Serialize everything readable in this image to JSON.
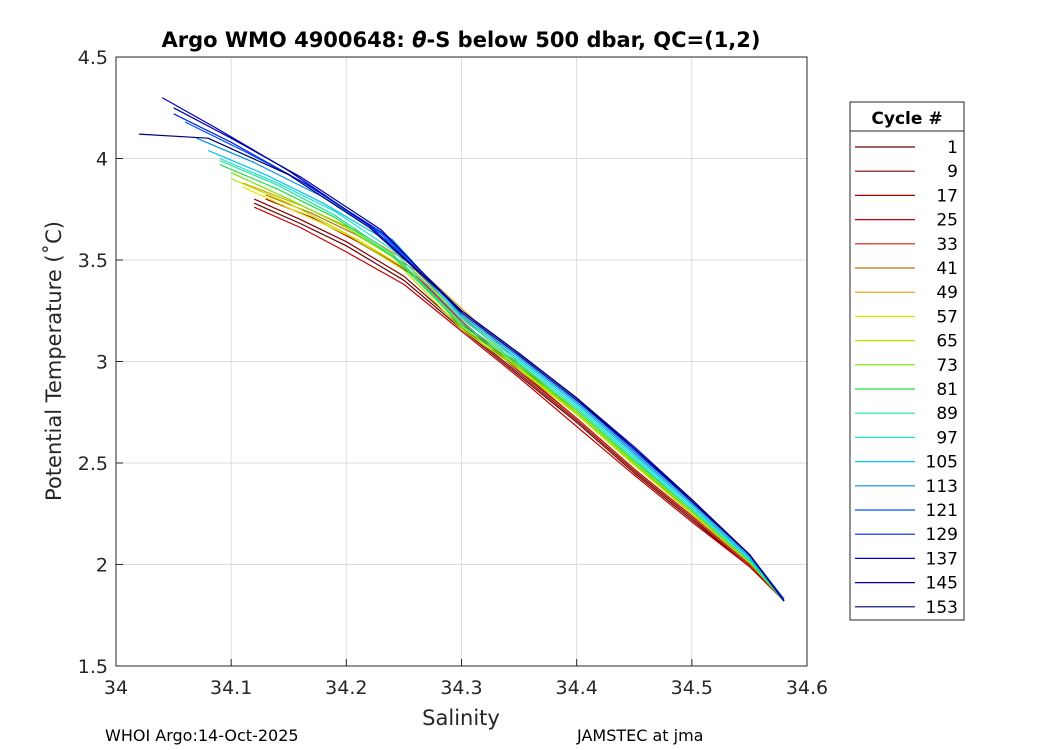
{
  "chart_data": {
    "type": "line",
    "title_prefix": "Argo WMO 4900648: ",
    "title_theta": "θ",
    "title_suffix": "-S below 500 dbar,  QC=(1,2)",
    "xlabel": "Salinity",
    "ylabel": "Potential Temperature (˚C)",
    "xlim": [
      34,
      34.6
    ],
    "ylim": [
      1.5,
      4.5
    ],
    "xticks": [
      34,
      34.1,
      34.2,
      34.3,
      34.4,
      34.5,
      34.6
    ],
    "xtick_labels": [
      "34",
      "34.1",
      "34.2",
      "34.3",
      "34.4",
      "34.5",
      "34.6"
    ],
    "yticks": [
      1.5,
      2,
      2.5,
      3,
      3.5,
      4,
      4.5
    ],
    "ytick_labels": [
      "1.5",
      "2",
      "2.5",
      "3",
      "3.5",
      "4",
      "4.5"
    ],
    "grid": true,
    "legend_title": "Cycle #",
    "legend_position": "right",
    "series": [
      {
        "name": "1",
        "color": "#6a0000",
        "s": [
          34.12,
          34.16,
          34.2,
          34.25,
          34.3,
          34.35,
          34.4,
          34.45,
          34.5,
          34.55,
          34.58
        ],
        "t": [
          3.78,
          3.68,
          3.57,
          3.4,
          3.16,
          2.93,
          2.7,
          2.45,
          2.22,
          1.99,
          1.83
        ]
      },
      {
        "name": "9",
        "color": "#860000",
        "s": [
          34.12,
          34.16,
          34.2,
          34.25,
          34.3,
          34.35,
          34.4,
          34.45,
          34.5,
          34.55,
          34.58
        ],
        "t": [
          3.8,
          3.7,
          3.59,
          3.42,
          3.17,
          2.94,
          2.71,
          2.46,
          2.23,
          1.99,
          1.83
        ]
      },
      {
        "name": "17",
        "color": "#a60000",
        "s": [
          34.13,
          34.17,
          34.21,
          34.26,
          34.3,
          34.35,
          34.4,
          34.45,
          34.5,
          34.55,
          34.58
        ],
        "t": [
          3.8,
          3.71,
          3.59,
          3.42,
          3.19,
          2.95,
          2.72,
          2.47,
          2.24,
          2.0,
          1.83
        ]
      },
      {
        "name": "25",
        "color": "#c40000",
        "s": [
          34.12,
          34.16,
          34.2,
          34.25,
          34.3,
          34.35,
          34.4,
          34.45,
          34.5,
          34.55,
          34.58
        ],
        "t": [
          3.76,
          3.66,
          3.54,
          3.38,
          3.15,
          2.92,
          2.68,
          2.44,
          2.21,
          1.99,
          1.82
        ]
      },
      {
        "name": "33",
        "color": "#d21a00",
        "s": [
          34.14,
          34.18,
          34.22,
          34.26,
          34.3,
          34.35,
          34.4,
          34.45,
          34.5,
          34.55,
          34.58
        ],
        "t": [
          3.78,
          3.68,
          3.56,
          3.43,
          3.2,
          2.96,
          2.72,
          2.47,
          2.24,
          2.0,
          1.83
        ]
      },
      {
        "name": "41",
        "color": "#c07400",
        "s": [
          34.13,
          34.17,
          34.21,
          34.26,
          34.3,
          34.35,
          34.4,
          34.45,
          34.5,
          34.55,
          34.58
        ],
        "t": [
          3.82,
          3.73,
          3.62,
          3.45,
          3.22,
          2.98,
          2.74,
          2.49,
          2.26,
          2.01,
          1.83
        ]
      },
      {
        "name": "49",
        "color": "#e0a000",
        "s": [
          34.11,
          34.16,
          34.21,
          34.26,
          34.31,
          34.35,
          34.4,
          34.45,
          34.5,
          34.55,
          34.58
        ],
        "t": [
          3.88,
          3.77,
          3.64,
          3.47,
          3.21,
          2.99,
          2.75,
          2.5,
          2.26,
          2.01,
          1.83
        ]
      },
      {
        "name": "57",
        "color": "#e8e800",
        "s": [
          34.11,
          34.16,
          34.21,
          34.26,
          34.31,
          34.35,
          34.4,
          34.45,
          34.5,
          34.55,
          34.58
        ],
        "t": [
          3.86,
          3.73,
          3.6,
          3.43,
          3.18,
          2.97,
          2.74,
          2.49,
          2.25,
          2.01,
          1.83
        ]
      },
      {
        "name": "65",
        "color": "#b4e600",
        "s": [
          34.1,
          34.15,
          34.2,
          34.25,
          34.3,
          34.35,
          34.4,
          34.45,
          34.5,
          34.55,
          34.58
        ],
        "t": [
          3.9,
          3.78,
          3.63,
          3.45,
          3.16,
          2.96,
          2.74,
          2.49,
          2.25,
          2.01,
          1.82
        ]
      },
      {
        "name": "73",
        "color": "#78e600",
        "s": [
          34.1,
          34.15,
          34.2,
          34.25,
          34.3,
          34.35,
          34.4,
          34.45,
          34.5,
          34.55,
          34.58
        ],
        "t": [
          3.93,
          3.8,
          3.66,
          3.48,
          3.17,
          2.97,
          2.75,
          2.5,
          2.26,
          2.01,
          1.82
        ]
      },
      {
        "name": "81",
        "color": "#20e040",
        "s": [
          34.09,
          34.14,
          34.19,
          34.24,
          34.3,
          34.35,
          34.4,
          34.45,
          34.5,
          34.55,
          34.58
        ],
        "t": [
          3.97,
          3.85,
          3.71,
          3.52,
          3.18,
          2.98,
          2.76,
          2.51,
          2.27,
          2.02,
          1.82
        ]
      },
      {
        "name": "89",
        "color": "#20e0a0",
        "s": [
          34.09,
          34.14,
          34.19,
          34.24,
          34.3,
          34.35,
          34.4,
          34.45,
          34.5,
          34.55,
          34.58
        ],
        "t": [
          3.99,
          3.87,
          3.72,
          3.53,
          3.19,
          2.99,
          2.77,
          2.52,
          2.27,
          2.02,
          1.82
        ]
      },
      {
        "name": "97",
        "color": "#20e0d0",
        "s": [
          34.09,
          34.14,
          34.19,
          34.24,
          34.3,
          34.35,
          34.4,
          34.45,
          34.5,
          34.55,
          34.58
        ],
        "t": [
          4.0,
          3.88,
          3.74,
          3.55,
          3.21,
          3.0,
          2.78,
          2.53,
          2.28,
          2.03,
          1.83
        ]
      },
      {
        "name": "105",
        "color": "#00c8e8",
        "s": [
          34.08,
          34.13,
          34.18,
          34.24,
          34.3,
          34.35,
          34.4,
          34.45,
          34.5,
          34.55,
          34.58
        ],
        "t": [
          4.04,
          3.92,
          3.78,
          3.58,
          3.22,
          3.01,
          2.79,
          2.54,
          2.29,
          2.03,
          1.83
        ]
      },
      {
        "name": "113",
        "color": "#0090e0",
        "s": [
          34.07,
          34.12,
          34.18,
          34.24,
          34.3,
          34.35,
          34.4,
          34.45,
          34.5,
          34.55,
          34.58
        ],
        "t": [
          4.1,
          3.98,
          3.81,
          3.6,
          3.23,
          3.02,
          2.8,
          2.55,
          2.3,
          2.04,
          1.83
        ]
      },
      {
        "name": "121",
        "color": "#0050ff",
        "s": [
          34.06,
          34.11,
          34.17,
          34.23,
          34.3,
          34.35,
          34.4,
          34.45,
          34.5,
          34.55,
          34.58
        ],
        "t": [
          4.18,
          4.04,
          3.86,
          3.63,
          3.24,
          3.03,
          2.81,
          2.56,
          2.31,
          2.05,
          1.83
        ]
      },
      {
        "name": "129",
        "color": "#0024e8",
        "s": [
          34.05,
          34.1,
          34.16,
          34.23,
          34.3,
          34.35,
          34.4,
          34.45,
          34.5,
          34.55,
          34.58
        ],
        "t": [
          4.22,
          4.08,
          3.89,
          3.64,
          3.25,
          3.04,
          2.82,
          2.57,
          2.31,
          2.05,
          1.82
        ]
      },
      {
        "name": "137",
        "color": "#0000c8",
        "s": [
          34.04,
          34.09,
          34.15,
          34.22,
          34.3,
          34.35,
          34.4,
          34.45,
          34.5,
          34.55,
          34.58
        ],
        "t": [
          4.3,
          4.14,
          3.94,
          3.67,
          3.25,
          3.04,
          2.82,
          2.58,
          2.32,
          2.05,
          1.82
        ]
      },
      {
        "name": "145",
        "color": "#000096",
        "s": [
          34.05,
          34.1,
          34.16,
          34.23,
          34.3,
          34.35,
          34.4,
          34.45,
          34.5,
          34.55,
          34.58
        ],
        "t": [
          4.25,
          4.1,
          3.91,
          3.65,
          3.24,
          3.03,
          2.81,
          2.57,
          2.31,
          2.05,
          1.82
        ]
      },
      {
        "name": "153",
        "color": "#00006e",
        "s": [
          34.02,
          34.08,
          34.15,
          34.22,
          34.3,
          34.35,
          34.4,
          34.45,
          34.5,
          34.55,
          34.58
        ],
        "t": [
          4.12,
          4.1,
          3.92,
          3.66,
          3.25,
          3.04,
          2.82,
          2.57,
          2.32,
          2.05,
          1.82
        ]
      }
    ]
  },
  "footer": {
    "left": "WHOI Argo:14-Oct-2025",
    "right": "JAMSTEC at jma"
  }
}
